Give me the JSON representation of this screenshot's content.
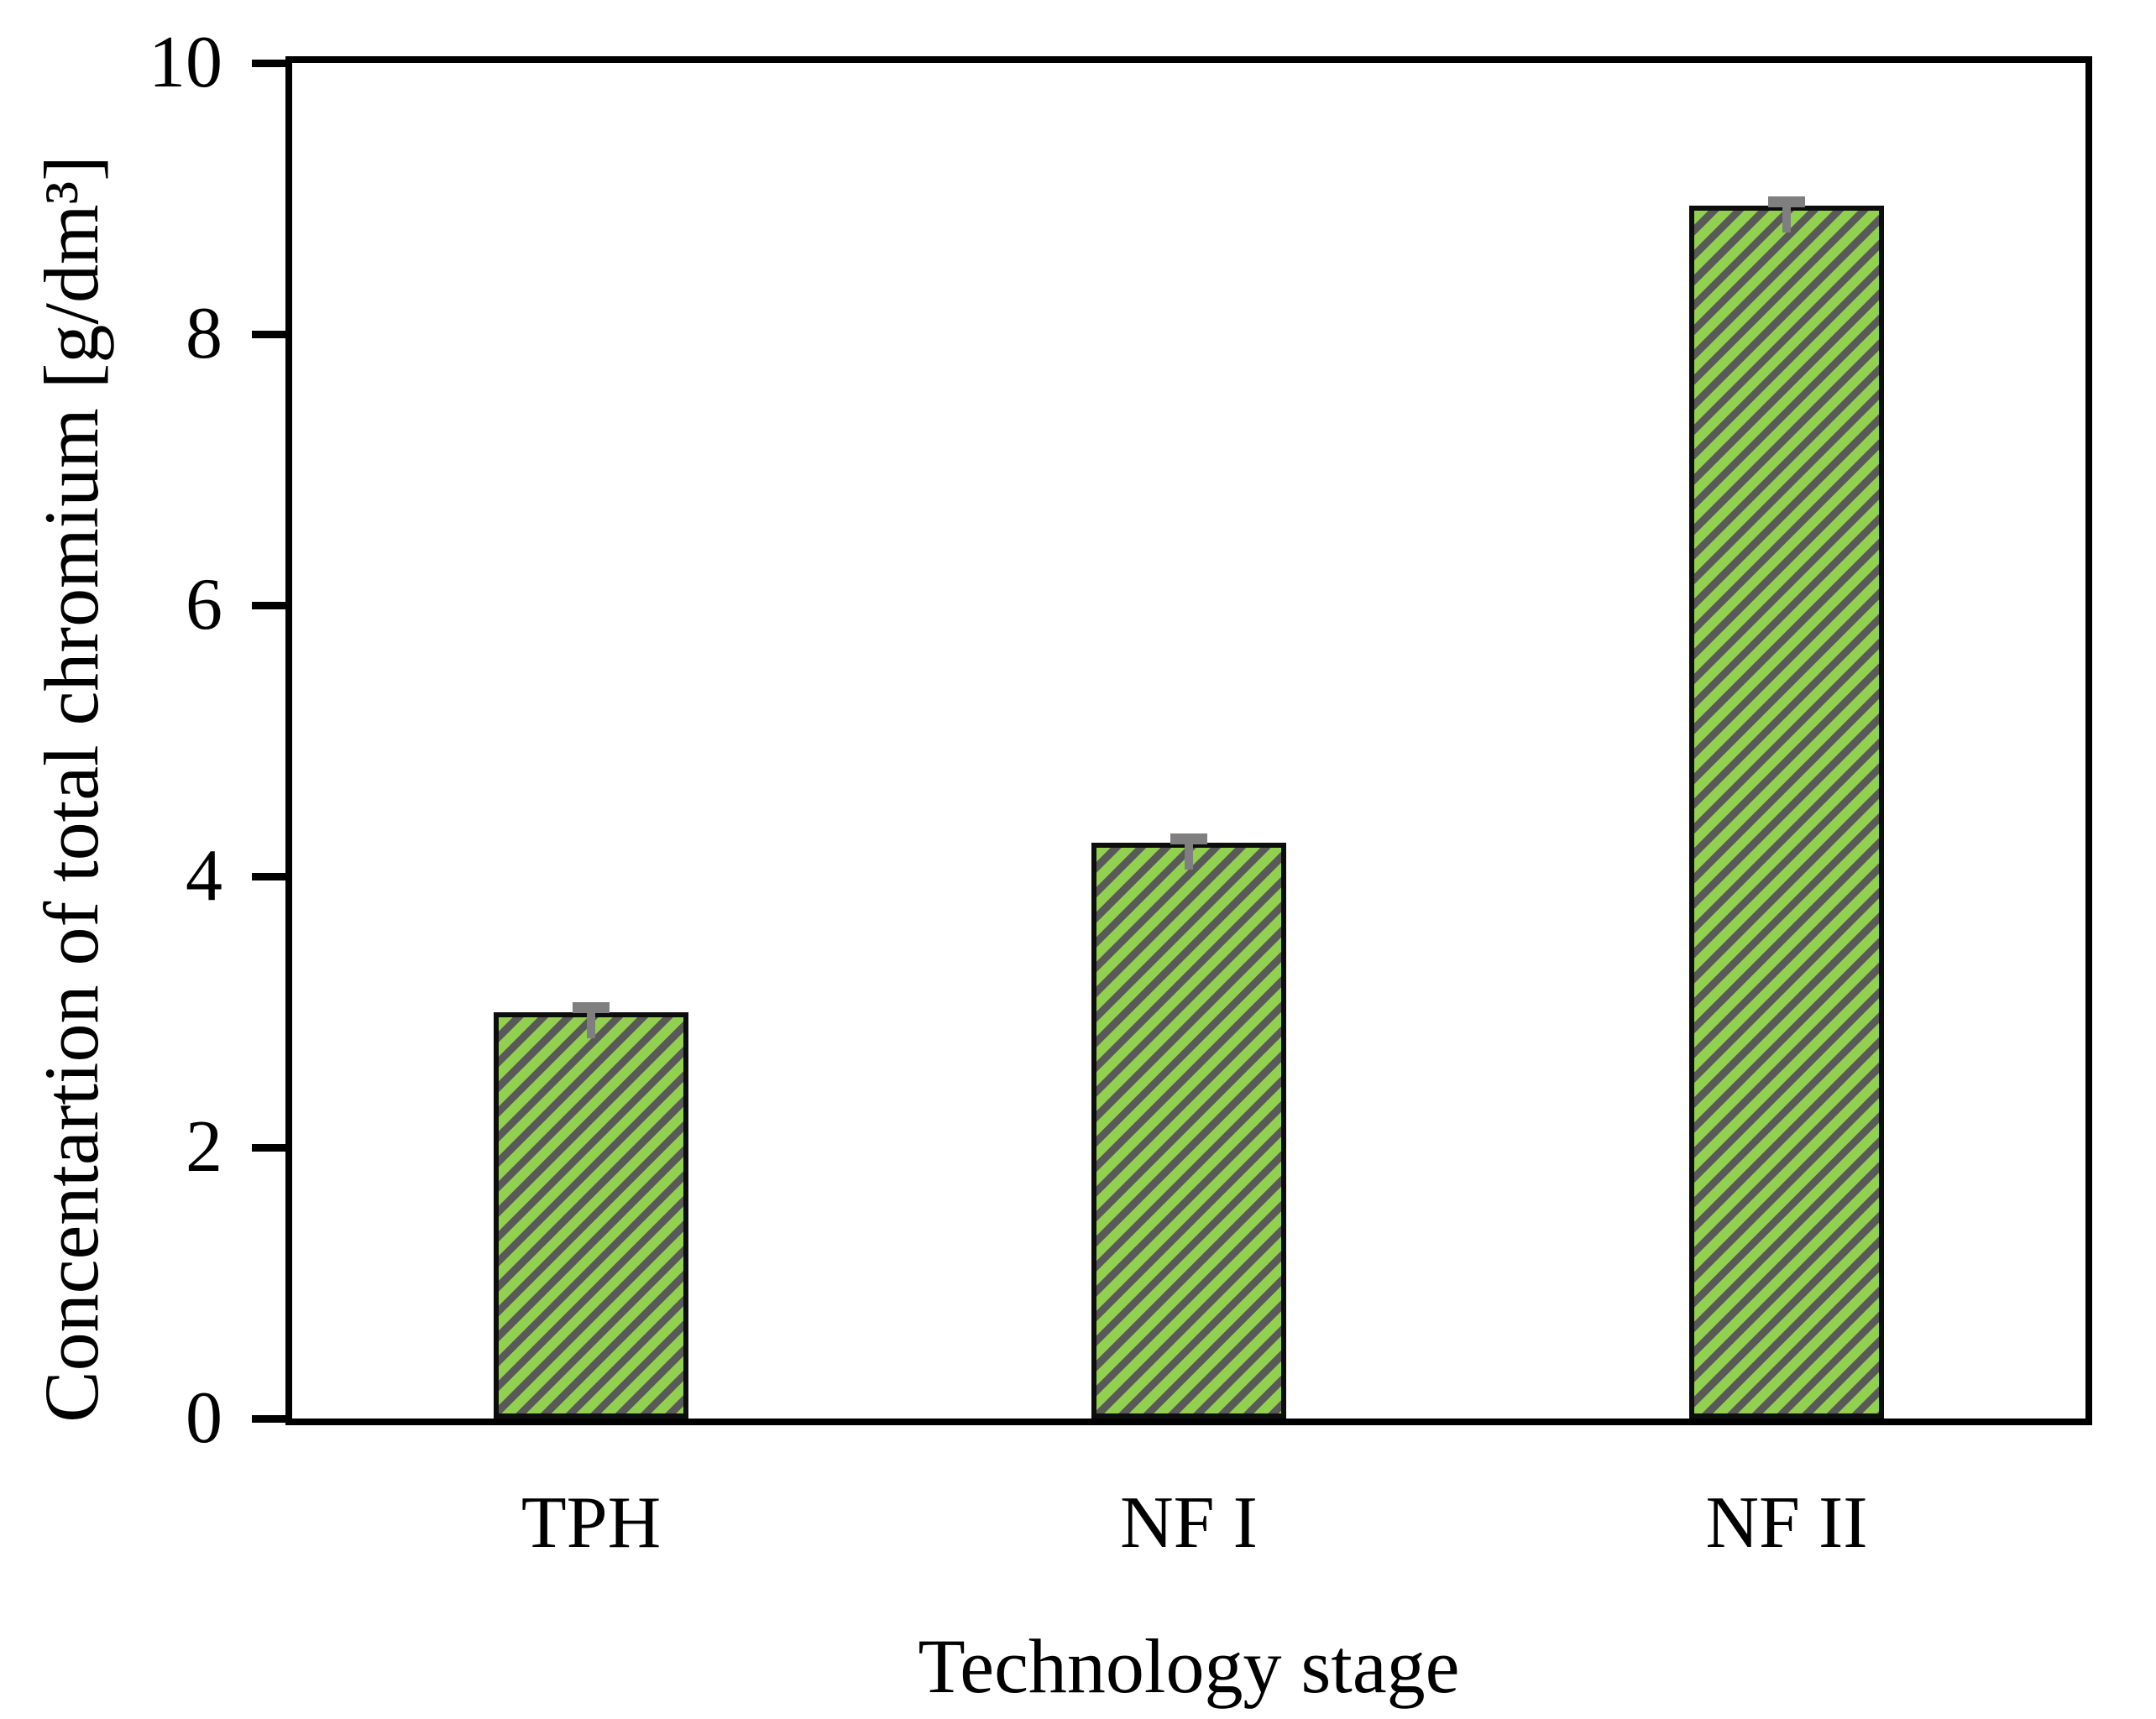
{
  "figure": {
    "background": "#ffffff",
    "axis_color": "#000000"
  },
  "chart_data": {
    "type": "bar",
    "categories": [
      "TPH",
      "NF I",
      "NF II"
    ],
    "values": [
      3.0,
      4.25,
      8.95
    ],
    "errors": [
      0.05,
      0.05,
      0.05
    ],
    "title": "",
    "xlabel": "Technology stage",
    "ylabel": "Concentartion of total chromium [g/dm³]",
    "ylim": [
      0,
      10
    ],
    "yticks": [
      0,
      2,
      4,
      6,
      8,
      10
    ],
    "grid": false,
    "legend": null,
    "bar_fill_color": "#92D050",
    "bar_hatch_color": "#595959",
    "bar_hatch_style": "diagonal-forward",
    "bar_border_color": "#0d0d0d",
    "error_bar_color": "#7f7f7f"
  }
}
